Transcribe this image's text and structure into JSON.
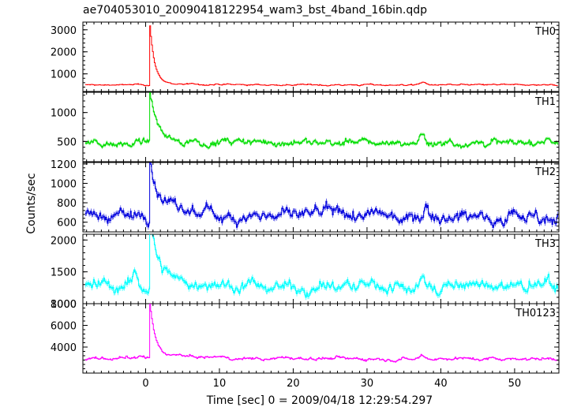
{
  "chart_data": {
    "type": "line",
    "title": "ae704053010_20090418122954_wam3_bst_4band_16bin.qdp",
    "xlabel": "Time [sec] 0 = 2009/04/18 12:29:54.297",
    "ylabel": "Counts/sec",
    "xlim": [
      -8.5,
      56
    ],
    "x_ticks": [
      0,
      10,
      20,
      30,
      40,
      50
    ],
    "panels": [
      {
        "name": "TH0",
        "color": "#ff0000",
        "ylim": [
          200,
          3350
        ],
        "y_ticks": [
          1000,
          2000,
          3000
        ],
        "baseline": 500,
        "noise": 30,
        "peak": 3300,
        "peak_x": 0.5,
        "decay": 0.6,
        "bumps": [
          {
            "x": 37.5,
            "h": 120
          }
        ]
      },
      {
        "name": "TH1",
        "color": "#00dd00",
        "ylim": [
          150,
          1350
        ],
        "y_ticks": [
          500,
          1000
        ],
        "baseline": 480,
        "noise": 55,
        "peak": 1310,
        "peak_x": 0.5,
        "decay": 0.8,
        "bumps": [
          {
            "x": 37.5,
            "h": 120
          },
          {
            "x": 54.5,
            "h": 100
          }
        ]
      },
      {
        "name": "TH2",
        "color": "#0000dd",
        "ylim": [
          500,
          1215
        ],
        "y_ticks": [
          600,
          800,
          1000,
          1200
        ],
        "baseline": 670,
        "noise": 60,
        "peak": 1190,
        "peak_x": 0.5,
        "decay": 0.8,
        "bumps": [
          {
            "x": 38,
            "h": 120
          }
        ]
      },
      {
        "name": "TH3",
        "color": "#00ffff",
        "ylim": [
          1000,
          2090
        ],
        "y_ticks": [
          1000,
          1500,
          2000
        ],
        "baseline": 1270,
        "noise": 90,
        "peak": 2070,
        "peak_x": 0.5,
        "decay": 0.9,
        "bumps": [
          {
            "x": -1.5,
            "h": 150
          },
          {
            "x": 37.5,
            "h": 120
          }
        ]
      },
      {
        "name": "TH0123",
        "color": "#ff00ff",
        "ylim": [
          1600,
          8000
        ],
        "y_ticks": [
          4000,
          6000,
          8000
        ],
        "baseline": 2950,
        "noise": 140,
        "peak": 7800,
        "peak_x": 0.5,
        "decay": 0.6,
        "bumps": [
          {
            "x": 37.5,
            "h": 350
          }
        ]
      }
    ],
    "grid": false,
    "legend": "none"
  }
}
